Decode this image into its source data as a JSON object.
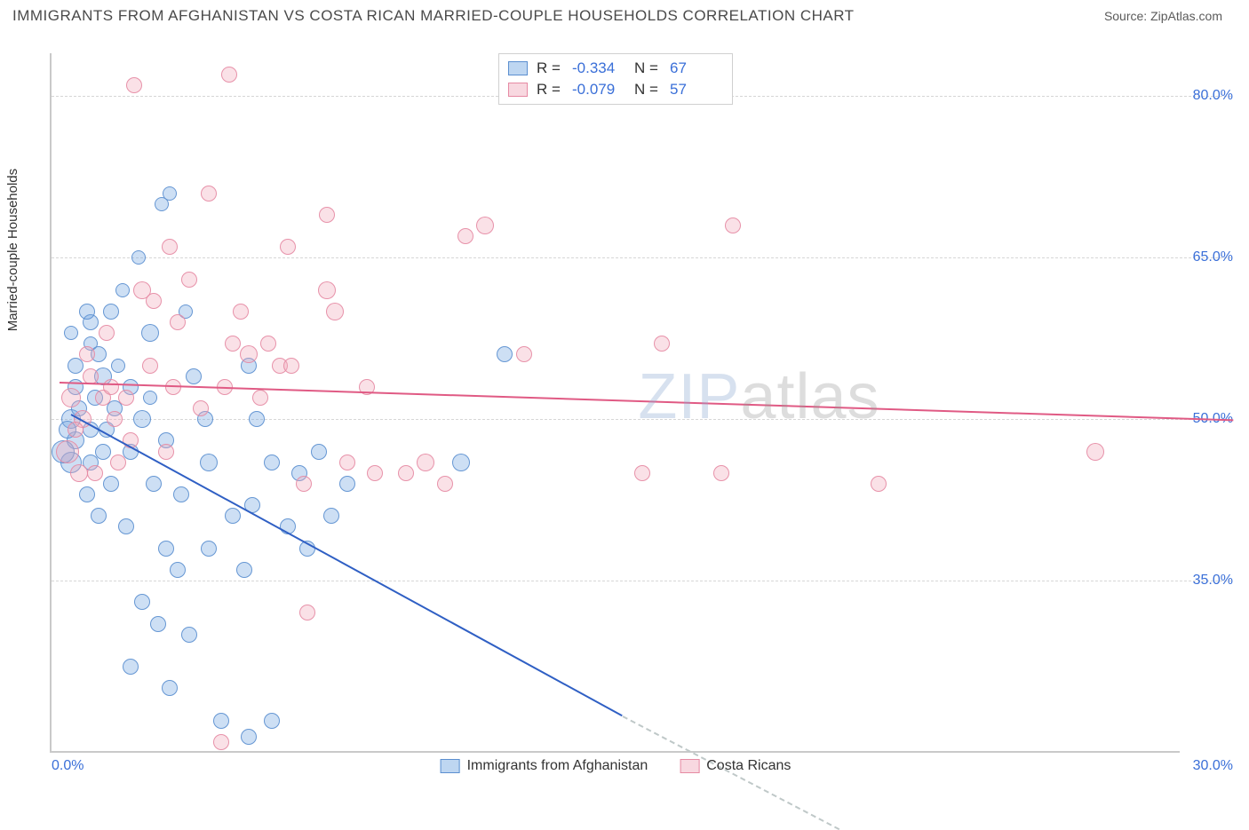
{
  "title": "IMMIGRANTS FROM AFGHANISTAN VS COSTA RICAN MARRIED-COUPLE HOUSEHOLDS CORRELATION CHART",
  "source_label": "Source:",
  "source_name": "ZipAtlas.com",
  "watermark_a": "ZIP",
  "watermark_b": "atlas",
  "chart": {
    "type": "scatter",
    "ylabel": "Married-couple Households",
    "xlim": [
      0,
      30
    ],
    "ylim": [
      19,
      84
    ],
    "background_color": "#ffffff",
    "grid_color": "#d6d6d6",
    "axis_color": "#c9c9c9",
    "tick_color": "#3a6fd8",
    "tick_fontsize": 16,
    "label_fontsize": 15,
    "yticks": [
      35,
      50,
      65,
      80
    ],
    "ytick_labels": [
      "35.0%",
      "50.0%",
      "65.0%",
      "80.0%"
    ],
    "xtick_min_label": "0.0%",
    "xtick_max_label": "30.0%",
    "point_border_opacity": 0.9,
    "point_fill_opacity": 0.35,
    "series": [
      {
        "id": "afghanistan",
        "label": "Immigrants from Afghanistan",
        "color": "#6fa3e0",
        "border": "#5b8fd0",
        "line_color": "#2f5fc4",
        "R": "-0.334",
        "N": "67",
        "regression": {
          "x1": 0.5,
          "y1": 50.5,
          "x2": 14.5,
          "y2": 22.5,
          "dash_x2": 20.0,
          "dash_y2": 12.0
        },
        "points": [
          {
            "x": 0.6,
            "y": 55,
            "r": 9
          },
          {
            "x": 0.6,
            "y": 53,
            "r": 9
          },
          {
            "x": 0.5,
            "y": 50,
            "r": 11
          },
          {
            "x": 0.6,
            "y": 48,
            "r": 10
          },
          {
            "x": 0.5,
            "y": 46,
            "r": 12
          },
          {
            "x": 0.4,
            "y": 49,
            "r": 10
          },
          {
            "x": 1.0,
            "y": 57,
            "r": 8
          },
          {
            "x": 1.0,
            "y": 59,
            "r": 9
          },
          {
            "x": 1.3,
            "y": 54,
            "r": 10
          },
          {
            "x": 1.1,
            "y": 52,
            "r": 9
          },
          {
            "x": 1.4,
            "y": 49,
            "r": 9
          },
          {
            "x": 1.0,
            "y": 46,
            "r": 9
          },
          {
            "x": 1.5,
            "y": 44,
            "r": 9
          },
          {
            "x": 0.9,
            "y": 43,
            "r": 9
          },
          {
            "x": 1.2,
            "y": 41,
            "r": 9
          },
          {
            "x": 1.8,
            "y": 62,
            "r": 8
          },
          {
            "x": 2.2,
            "y": 65,
            "r": 8
          },
          {
            "x": 2.5,
            "y": 58,
            "r": 10
          },
          {
            "x": 2.8,
            "y": 70,
            "r": 8
          },
          {
            "x": 2.0,
            "y": 53,
            "r": 9
          },
          {
            "x": 2.3,
            "y": 50,
            "r": 10
          },
          {
            "x": 2.0,
            "y": 47,
            "r": 9
          },
          {
            "x": 2.6,
            "y": 44,
            "r": 9
          },
          {
            "x": 2.9,
            "y": 48,
            "r": 9
          },
          {
            "x": 1.9,
            "y": 40,
            "r": 9
          },
          {
            "x": 2.9,
            "y": 38,
            "r": 9
          },
          {
            "x": 3.2,
            "y": 36,
            "r": 9
          },
          {
            "x": 2.3,
            "y": 33,
            "r": 9
          },
          {
            "x": 2.7,
            "y": 31,
            "r": 9
          },
          {
            "x": 3.5,
            "y": 30,
            "r": 9
          },
          {
            "x": 2.0,
            "y": 27,
            "r": 9
          },
          {
            "x": 3.0,
            "y": 25,
            "r": 9
          },
          {
            "x": 4.3,
            "y": 22,
            "r": 9
          },
          {
            "x": 5.0,
            "y": 20.5,
            "r": 9
          },
          {
            "x": 5.6,
            "y": 22,
            "r": 9
          },
          {
            "x": 3.4,
            "y": 60,
            "r": 8
          },
          {
            "x": 3.6,
            "y": 54,
            "r": 9
          },
          {
            "x": 3.9,
            "y": 50,
            "r": 9
          },
          {
            "x": 4.0,
            "y": 46,
            "r": 10
          },
          {
            "x": 3.3,
            "y": 43,
            "r": 9
          },
          {
            "x": 4.6,
            "y": 41,
            "r": 9
          },
          {
            "x": 4.0,
            "y": 38,
            "r": 9
          },
          {
            "x": 4.9,
            "y": 36,
            "r": 9
          },
          {
            "x": 5.0,
            "y": 55,
            "r": 9
          },
          {
            "x": 5.2,
            "y": 50,
            "r": 9
          },
          {
            "x": 5.6,
            "y": 46,
            "r": 9
          },
          {
            "x": 5.1,
            "y": 42,
            "r": 9
          },
          {
            "x": 6.0,
            "y": 40,
            "r": 9
          },
          {
            "x": 6.3,
            "y": 45,
            "r": 9
          },
          {
            "x": 6.5,
            "y": 38,
            "r": 9
          },
          {
            "x": 6.8,
            "y": 47,
            "r": 9
          },
          {
            "x": 7.1,
            "y": 41,
            "r": 9
          },
          {
            "x": 7.5,
            "y": 44,
            "r": 9
          },
          {
            "x": 11.5,
            "y": 56,
            "r": 9
          },
          {
            "x": 10.4,
            "y": 46,
            "r": 10
          },
          {
            "x": 3.0,
            "y": 71,
            "r": 8
          },
          {
            "x": 1.5,
            "y": 60,
            "r": 9
          },
          {
            "x": 0.9,
            "y": 60,
            "r": 9
          },
          {
            "x": 0.7,
            "y": 51,
            "r": 9
          },
          {
            "x": 1.2,
            "y": 56,
            "r": 9
          },
          {
            "x": 0.5,
            "y": 58,
            "r": 8
          },
          {
            "x": 1.7,
            "y": 55,
            "r": 8
          },
          {
            "x": 1.6,
            "y": 51,
            "r": 9
          },
          {
            "x": 1.0,
            "y": 49,
            "r": 9
          },
          {
            "x": 1.3,
            "y": 47,
            "r": 9
          },
          {
            "x": 2.5,
            "y": 52,
            "r": 8
          },
          {
            "x": 0.3,
            "y": 47,
            "r": 13
          }
        ]
      },
      {
        "id": "costa_rican",
        "label": "Costa Ricans",
        "color": "#f0a8ba",
        "border": "#e68aa3",
        "line_color": "#e05a84",
        "R": "-0.079",
        "N": "57",
        "regression": {
          "x1": 0.2,
          "y1": 53.5,
          "x2": 30.0,
          "y2": 50.0
        },
        "points": [
          {
            "x": 0.5,
            "y": 52,
            "r": 11
          },
          {
            "x": 0.8,
            "y": 50,
            "r": 10
          },
          {
            "x": 1.0,
            "y": 54,
            "r": 9
          },
          {
            "x": 1.3,
            "y": 52,
            "r": 9
          },
          {
            "x": 0.4,
            "y": 47,
            "r": 13
          },
          {
            "x": 0.7,
            "y": 45,
            "r": 10
          },
          {
            "x": 1.6,
            "y": 50,
            "r": 9
          },
          {
            "x": 1.9,
            "y": 52,
            "r": 9
          },
          {
            "x": 2.3,
            "y": 62,
            "r": 10
          },
          {
            "x": 2.1,
            "y": 81,
            "r": 9
          },
          {
            "x": 3.0,
            "y": 66,
            "r": 9
          },
          {
            "x": 3.2,
            "y": 59,
            "r": 9
          },
          {
            "x": 2.5,
            "y": 55,
            "r": 9
          },
          {
            "x": 3.8,
            "y": 51,
            "r": 9
          },
          {
            "x": 4.0,
            "y": 71,
            "r": 9
          },
          {
            "x": 4.4,
            "y": 53,
            "r": 9
          },
          {
            "x": 4.5,
            "y": 82,
            "r": 9
          },
          {
            "x": 4.6,
            "y": 57,
            "r": 9
          },
          {
            "x": 4.8,
            "y": 60,
            "r": 9
          },
          {
            "x": 5.0,
            "y": 56,
            "r": 10
          },
          {
            "x": 5.5,
            "y": 57,
            "r": 9
          },
          {
            "x": 5.8,
            "y": 55,
            "r": 9
          },
          {
            "x": 6.0,
            "y": 66,
            "r": 9
          },
          {
            "x": 6.4,
            "y": 44,
            "r": 9
          },
          {
            "x": 6.5,
            "y": 32,
            "r": 9
          },
          {
            "x": 7.0,
            "y": 62,
            "r": 10
          },
          {
            "x": 7.2,
            "y": 60,
            "r": 10
          },
          {
            "x": 7.0,
            "y": 69,
            "r": 9
          },
          {
            "x": 7.5,
            "y": 46,
            "r": 9
          },
          {
            "x": 8.0,
            "y": 53,
            "r": 9
          },
          {
            "x": 8.2,
            "y": 45,
            "r": 9
          },
          {
            "x": 9.0,
            "y": 45,
            "r": 9
          },
          {
            "x": 9.5,
            "y": 46,
            "r": 10
          },
          {
            "x": 10.0,
            "y": 44,
            "r": 9
          },
          {
            "x": 10.5,
            "y": 67,
            "r": 9
          },
          {
            "x": 11.0,
            "y": 68,
            "r": 10
          },
          {
            "x": 12.0,
            "y": 56,
            "r": 9
          },
          {
            "x": 15.0,
            "y": 45,
            "r": 9
          },
          {
            "x": 15.5,
            "y": 57,
            "r": 9
          },
          {
            "x": 17.0,
            "y": 45,
            "r": 9
          },
          {
            "x": 17.3,
            "y": 68,
            "r": 9
          },
          {
            "x": 21.0,
            "y": 44,
            "r": 9
          },
          {
            "x": 26.5,
            "y": 47,
            "r": 10
          },
          {
            "x": 4.3,
            "y": 20,
            "r": 9
          },
          {
            "x": 2.6,
            "y": 61,
            "r": 9
          },
          {
            "x": 1.4,
            "y": 58,
            "r": 9
          },
          {
            "x": 3.5,
            "y": 63,
            "r": 9
          },
          {
            "x": 0.9,
            "y": 56,
            "r": 9
          },
          {
            "x": 0.6,
            "y": 49,
            "r": 9
          },
          {
            "x": 1.1,
            "y": 45,
            "r": 9
          },
          {
            "x": 1.7,
            "y": 46,
            "r": 9
          },
          {
            "x": 2.9,
            "y": 47,
            "r": 9
          },
          {
            "x": 5.3,
            "y": 52,
            "r": 9
          },
          {
            "x": 6.1,
            "y": 55,
            "r": 9
          },
          {
            "x": 3.1,
            "y": 53,
            "r": 9
          },
          {
            "x": 2.0,
            "y": 48,
            "r": 9
          },
          {
            "x": 1.5,
            "y": 53,
            "r": 9
          }
        ]
      }
    ],
    "legend_top": {
      "R_label": "R =",
      "N_label": "N ="
    }
  }
}
